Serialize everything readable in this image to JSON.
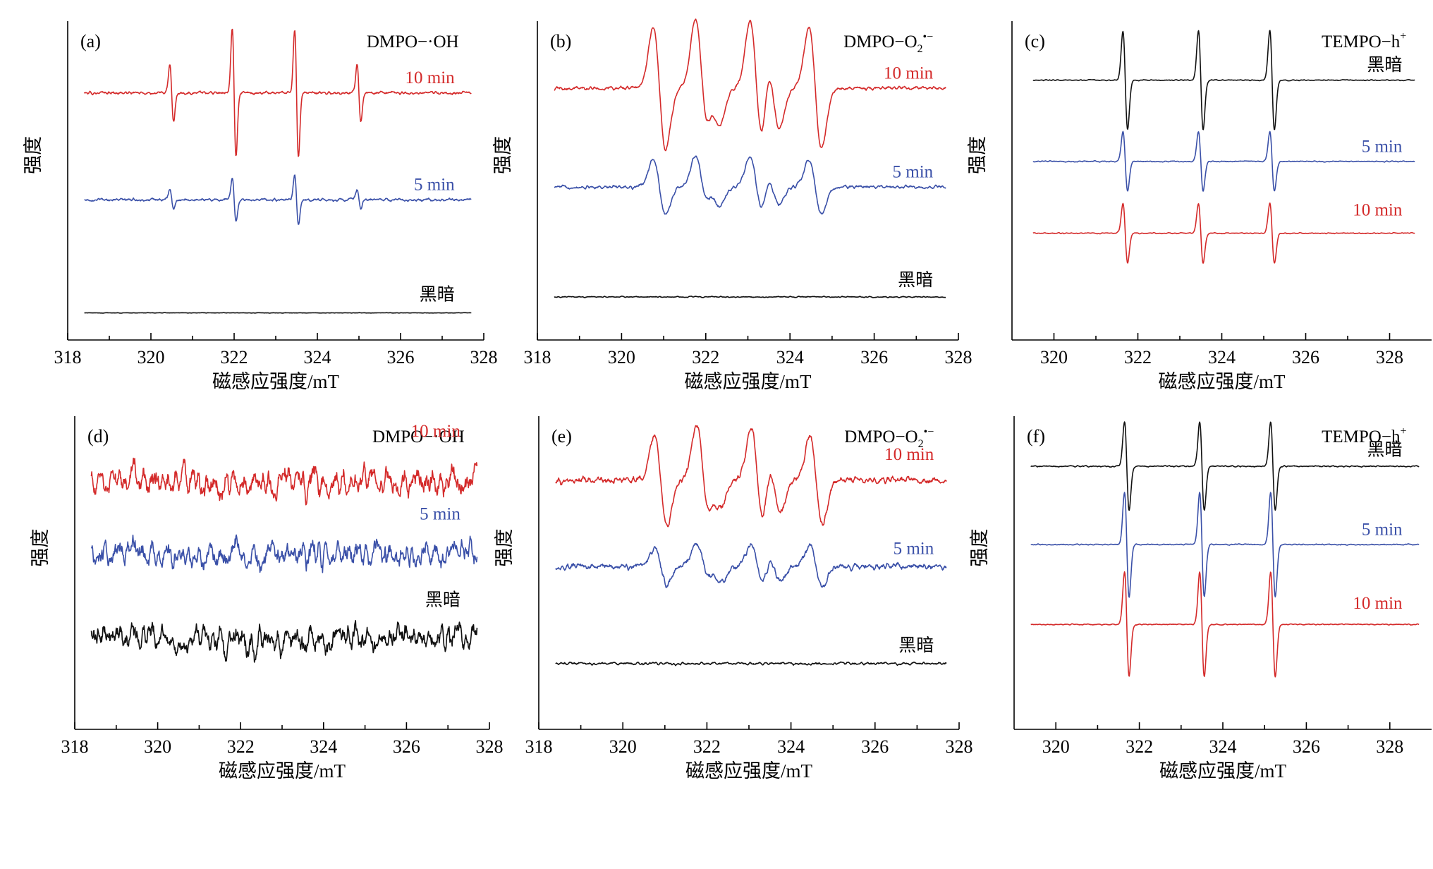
{
  "colors": {
    "red": "#d42a2a",
    "blue": "#3a50a8",
    "black": "#111111"
  },
  "chart_data": [
    {
      "panel": "(a)",
      "type": "line",
      "species": "DMPO-·OH",
      "kind": "dmpo_oh",
      "xlabel": "磁感应强度/mT",
      "ylabel": "强度",
      "xlim": [
        318,
        328
      ],
      "xticks": [
        "318",
        "320",
        "322",
        "324",
        "326",
        "328"
      ],
      "lines": [
        10,
        10,
        11
      ],
      "peaks": [
        320.5,
        322.0,
        323.5,
        325.0
      ],
      "series": [
        {
          "name": "10 min",
          "color": "red",
          "amp": [
            0.45,
            1.0,
            1.0,
            0.45
          ],
          "noise": 0.03
        },
        {
          "name": "5 min",
          "color": "blue",
          "amp": [
            0.15,
            0.35,
            0.4,
            0.15
          ],
          "noise": 0.03
        },
        {
          "name": "黑暗",
          "color": "black",
          "amp": [
            0,
            0,
            0,
            0
          ],
          "noise": 0.02
        }
      ]
    },
    {
      "panel": "(b)",
      "type": "line",
      "species": "DMPO-O2·−",
      "kind": "dmpo_o2",
      "xlabel": "磁感应强度/mT",
      "ylabel": "强度",
      "xlim": [
        318,
        328
      ],
      "xticks": [
        "318",
        "320",
        "322",
        "324",
        "326",
        "328"
      ],
      "lines": [
        10,
        10,
        11
      ],
      "peaks": [
        320.9,
        321.9,
        322.2,
        323.2,
        323.6,
        324.6
      ],
      "series": [
        {
          "name": "10 min",
          "color": "red",
          "amp": [
            0.9,
            1.0,
            0.5,
            1.0,
            0.6,
            0.9
          ],
          "noise": 0.04
        },
        {
          "name": "5 min",
          "color": "blue",
          "amp": [
            0.55,
            0.6,
            0.35,
            0.6,
            0.35,
            0.55
          ],
          "noise": 0.05
        },
        {
          "name": "黑暗",
          "color": "black",
          "amp": [
            0,
            0,
            0,
            0,
            0,
            0
          ],
          "noise": 0.07
        }
      ]
    },
    {
      "panel": "(c)",
      "type": "line",
      "species": "TEMPO-h+",
      "kind": "tempo",
      "xlabel": "磁感应强度/mT",
      "ylabel": "强度",
      "xlim": [
        319,
        329
      ],
      "xticks": [
        "320",
        "322",
        "324",
        "326",
        "328"
      ],
      "lines": [
        11,
        11,
        10
      ],
      "peaks": [
        321.7,
        323.5,
        325.2
      ],
      "series": [
        {
          "name": "黑暗",
          "color": "black",
          "amp": [
            1.0,
            1.0,
            1.0
          ],
          "noise": 0.015
        },
        {
          "name": "5 min",
          "color": "blue",
          "amp": [
            0.6,
            0.6,
            0.6
          ],
          "noise": 0.015
        },
        {
          "name": "10 min",
          "color": "red",
          "amp": [
            0.6,
            0.6,
            0.6
          ],
          "noise": 0.015
        }
      ]
    },
    {
      "panel": "(d)",
      "type": "line",
      "species": "DMPO-·OH",
      "kind": "noise",
      "xlabel": "磁感应强度/mT",
      "ylabel": "强度",
      "xlim": [
        318,
        328
      ],
      "xticks": [
        "318",
        "320",
        "322",
        "324",
        "326",
        "328"
      ],
      "lines": [
        10,
        10,
        11
      ],
      "peaks": [],
      "series": [
        {
          "name": "10 min",
          "color": "red",
          "amp": [],
          "noise": 0.35
        },
        {
          "name": "5 min",
          "color": "blue",
          "amp": [],
          "noise": 0.3
        },
        {
          "name": "黑暗",
          "color": "black",
          "amp": [],
          "noise": 0.35
        }
      ]
    },
    {
      "panel": "(e)",
      "type": "line",
      "species": "DMPO-O2·−",
      "kind": "dmpo_o2",
      "xlabel": "磁感应强度/mT",
      "ylabel": "强度",
      "xlim": [
        318,
        328
      ],
      "xticks": [
        "318",
        "320",
        "322",
        "324",
        "326",
        "328"
      ],
      "lines": [
        10,
        10,
        11
      ],
      "peaks": [
        320.9,
        321.9,
        322.2,
        323.2,
        323.6,
        324.6
      ],
      "series": [
        {
          "name": "10 min",
          "color": "red",
          "amp": [
            0.85,
            1.0,
            0.45,
            0.95,
            0.55,
            0.8
          ],
          "noise": 0.08
        },
        {
          "name": "5 min",
          "color": "blue",
          "amp": [
            0.4,
            0.5,
            0.3,
            0.5,
            0.3,
            0.45
          ],
          "noise": 0.1
        },
        {
          "name": "黑暗",
          "color": "black",
          "amp": [
            0,
            0,
            0,
            0,
            0,
            0
          ],
          "noise": 0.13
        }
      ]
    },
    {
      "panel": "(f)",
      "type": "line",
      "species": "TEMPO-h+",
      "kind": "tempo",
      "xlabel": "磁感应强度/mT",
      "ylabel": "强度",
      "xlim": [
        319,
        329
      ],
      "xticks": [
        "320",
        "322",
        "324",
        "326",
        "328"
      ],
      "lines": [
        11,
        11,
        10
      ],
      "peaks": [
        321.7,
        323.5,
        325.2
      ],
      "series": [
        {
          "name": "黑暗",
          "color": "black",
          "amp": [
            0.8,
            0.8,
            0.8
          ],
          "noise": 0.015
        },
        {
          "name": "5 min",
          "color": "blue",
          "amp": [
            0.95,
            0.95,
            0.95
          ],
          "noise": 0.015
        },
        {
          "name": "10 min",
          "color": "red",
          "amp": [
            0.95,
            0.95,
            0.95
          ],
          "noise": 0.015
        }
      ]
    }
  ]
}
